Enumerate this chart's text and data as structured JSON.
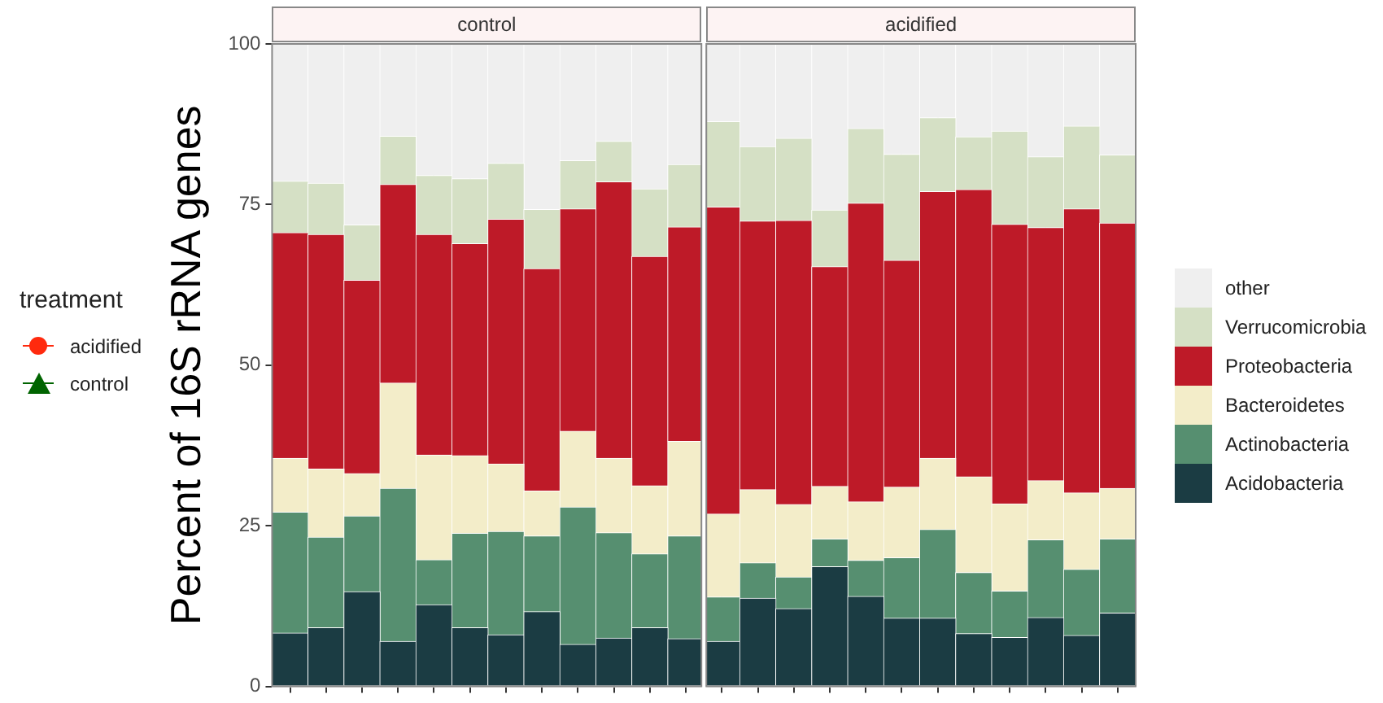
{
  "chart_data": {
    "type": "bar",
    "ylabel": "Percent of 16S rRNA genes",
    "annotations": [
      "control",
      "acidified"
    ],
    "stacked": true,
    "categories": [
      null,
      null,
      null,
      null,
      null,
      null,
      null,
      null,
      null,
      null,
      null,
      null,
      null,
      null,
      null,
      null,
      null,
      null,
      null,
      null,
      null,
      null,
      null,
      null
    ],
    "ylim": [
      0,
      100
    ],
    "yticks": [
      0,
      25,
      50,
      75,
      100
    ],
    "grid": true,
    "tick_labels": "y",
    "legend": "right",
    "legend_title": "treatment",
    "series": [
      {
        "name": "Acidobacteria",
        "color": "#1b3c43",
        "values": [
          8.3,
          9.1,
          14.7,
          7.0,
          12.7,
          9.1,
          8.0,
          11.6,
          6.5,
          7.5,
          9.1,
          7.4,
          7.0,
          13.7,
          12.1,
          18.6,
          14.0,
          10.6,
          10.6,
          8.2,
          7.6,
          10.7,
          7.9,
          11.4
        ]
      },
      {
        "name": "Actinobacteria",
        "color": "#568f70",
        "values": [
          18.8,
          14.1,
          11.8,
          23.8,
          7.0,
          14.7,
          16.1,
          11.8,
          21.4,
          16.4,
          11.5,
          16.0,
          6.9,
          5.5,
          4.9,
          4.3,
          5.6,
          9.4,
          13.8,
          9.5,
          7.2,
          12.1,
          10.3,
          11.5
        ]
      },
      {
        "name": "Bacteroidetes",
        "color": "#f3edc9",
        "values": [
          8.4,
          10.6,
          6.6,
          16.4,
          16.3,
          12.1,
          10.5,
          7.0,
          11.8,
          11.6,
          10.6,
          14.7,
          12.9,
          11.4,
          11.3,
          8.2,
          9.1,
          11.0,
          11.1,
          14.9,
          13.6,
          9.2,
          11.9,
          7.9
        ]
      },
      {
        "name": "Proteobacteria",
        "color": "#be1a28",
        "values": [
          35.1,
          36.5,
          30.1,
          30.9,
          34.3,
          33.0,
          38.1,
          34.6,
          34.6,
          43.0,
          35.7,
          33.4,
          47.8,
          41.8,
          44.2,
          34.2,
          46.5,
          35.3,
          41.5,
          44.7,
          43.5,
          39.4,
          44.2,
          41.3
        ]
      },
      {
        "name": "Verrucomicrobia",
        "color": "#d5e0c5",
        "values": [
          8.0,
          8.0,
          8.6,
          7.5,
          9.2,
          10.1,
          8.7,
          9.2,
          7.5,
          6.3,
          10.5,
          9.7,
          13.3,
          11.6,
          12.8,
          8.8,
          11.6,
          16.5,
          11.5,
          8.2,
          14.5,
          11.0,
          12.9,
          10.6
        ]
      },
      {
        "name": "other",
        "color": "#efefef",
        "values": [
          21.4,
          21.7,
          28.2,
          14.4,
          20.5,
          21.0,
          18.6,
          25.8,
          18.2,
          15.2,
          22.6,
          18.8,
          12.1,
          16.0,
          14.7,
          25.9,
          13.2,
          17.2,
          11.5,
          14.5,
          13.6,
          17.6,
          12.8,
          17.3
        ]
      },
      {
        "type": "scatter",
        "name": "acidified",
        "color": "#ff2a0e",
        "marker": "circle",
        "values": [
          null,
          null,
          null,
          null,
          null,
          null,
          null,
          null,
          null,
          null,
          null,
          null,
          null,
          null,
          null,
          null,
          null,
          null,
          null,
          null,
          null,
          null,
          null,
          null
        ]
      },
      {
        "type": "scatter",
        "name": "control",
        "color": "#006400",
        "marker": "triangle",
        "values": [
          null,
          null,
          null,
          null,
          null,
          null,
          null,
          null,
          null,
          null,
          null,
          null,
          null,
          null,
          null,
          null,
          null,
          null,
          null,
          null,
          null,
          null,
          null,
          null
        ]
      }
    ]
  }
}
